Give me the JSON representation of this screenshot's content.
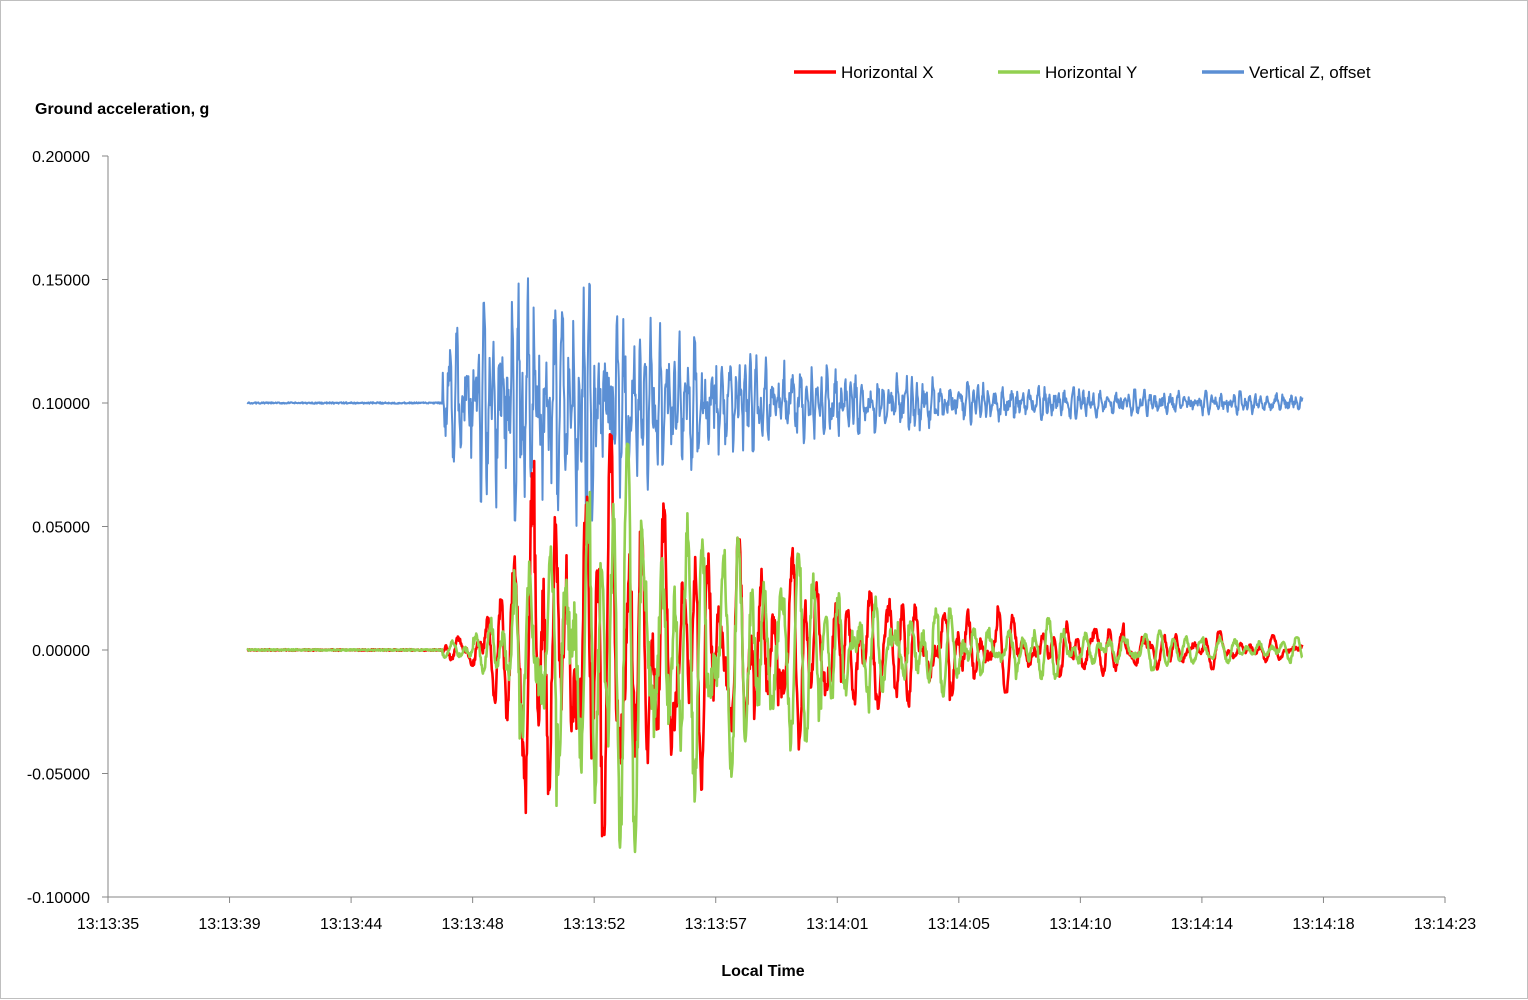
{
  "chart_data": {
    "type": "line",
    "ylabel": "Ground acceleration, g",
    "xlabel": "Local Time",
    "ylim": [
      -0.1,
      0.2
    ],
    "yticks": [
      "0.20000",
      "0.15000",
      "0.10000",
      "0.05000",
      "0.00000",
      "-0.05000",
      "-0.10000"
    ],
    "ytick_values": [
      0.2,
      0.15,
      0.1,
      0.05,
      0.0,
      -0.05,
      -0.1
    ],
    "xlim_seconds": [
      0,
      48
    ],
    "xticks": [
      "13:13:35",
      "13:13:39",
      "13:13:44",
      "13:13:48",
      "13:13:52",
      "13:13:57",
      "13:14:01",
      "13:14:05",
      "13:14:10",
      "13:14:14",
      "13:14:18",
      "13:14:23"
    ],
    "grid": false,
    "legend_position": "top-right",
    "series": [
      {
        "name": "Horizontal X",
        "color": "#ff0000",
        "baseline": 0.0,
        "quiet_start_s": 5.0,
        "event_start_s": 12.0,
        "end_s": 42.9,
        "envelope_s": [
          12,
          13,
          14,
          15,
          16,
          17,
          18,
          20,
          22,
          24,
          26,
          28,
          30,
          32,
          35,
          38,
          40,
          42.9
        ],
        "envelope_amp": [
          0.004,
          0.008,
          0.02,
          0.06,
          0.07,
          0.075,
          0.07,
          0.055,
          0.04,
          0.035,
          0.028,
          0.022,
          0.018,
          0.014,
          0.01,
          0.007,
          0.006,
          0.004
        ]
      },
      {
        "name": "Horizontal Y",
        "color": "#92d050",
        "baseline": 0.0,
        "quiet_start_s": 5.0,
        "event_start_s": 12.0,
        "end_s": 42.9,
        "envelope_s": [
          12,
          13,
          14,
          15,
          16,
          17,
          18,
          20,
          22,
          24,
          26,
          28,
          30,
          32,
          35,
          38,
          40,
          42.9
        ],
        "envelope_amp": [
          0.003,
          0.006,
          0.012,
          0.04,
          0.06,
          0.065,
          0.07,
          0.06,
          0.045,
          0.035,
          0.025,
          0.02,
          0.015,
          0.012,
          0.009,
          0.006,
          0.005,
          0.004
        ]
      },
      {
        "name": "Vertical Z, offset",
        "color": "#5b8fd4",
        "baseline": 0.1,
        "quiet_start_s": 5.0,
        "event_start_s": 12.0,
        "end_s": 42.9,
        "envelope_s": [
          12,
          13,
          14,
          15,
          16,
          17,
          18,
          20,
          22,
          24,
          26,
          28,
          30,
          32,
          35,
          38,
          40,
          42.9
        ],
        "envelope_amp": [
          0.02,
          0.03,
          0.035,
          0.04,
          0.045,
          0.04,
          0.035,
          0.025,
          0.018,
          0.014,
          0.012,
          0.01,
          0.008,
          0.006,
          0.005,
          0.004,
          0.004,
          0.003
        ]
      }
    ]
  }
}
